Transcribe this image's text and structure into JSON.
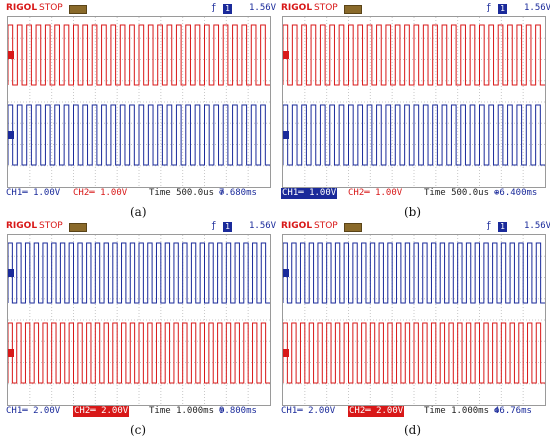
{
  "panels": [
    {
      "brand": "RIGOL",
      "status": "STOP",
      "trig_level": "1.56V",
      "ch1": "CH1═ 1.00V",
      "ch2": "CH2═ 1.00V",
      "ch1_badge": false,
      "ch2_badge": false,
      "timebase": "Time 500.0us",
      "trig_pos": "7.680ms",
      "caption": "(a)",
      "order": [
        "red",
        "blue"
      ]
    },
    {
      "brand": "RIGOL",
      "status": "STOP",
      "trig_level": "1.56V",
      "ch1": "CH1═ 1.00V",
      "ch2": "CH2═ 1.00V",
      "ch1_badge": true,
      "ch2_badge": false,
      "timebase": "Time 500.0us",
      "trig_pos": "-6.400ms",
      "caption": "(b)",
      "order": [
        "red",
        "blue"
      ]
    },
    {
      "brand": "RIGOL",
      "status": "STOP",
      "trig_level": "1.56V",
      "ch1": "CH1═ 2.00V",
      "ch2": "CH2═ 2.00V",
      "ch1_badge": false,
      "ch2_badge": true,
      "timebase": "Time 1.000ms",
      "trig_pos": "9.800ms",
      "caption": "(c)",
      "order": [
        "blue",
        "red"
      ]
    },
    {
      "brand": "RIGOL",
      "status": "STOP",
      "trig_level": "1.56V",
      "ch1": "CH1═ 2.00V",
      "ch2": "CH2═ 2.00V",
      "ch1_badge": false,
      "ch2_badge": true,
      "timebase": "Time 1.000ms",
      "trig_pos": "46.76ms",
      "caption": "(d)",
      "order": [
        "blue",
        "red"
      ]
    }
  ],
  "colors": {
    "ch1": "#1a2a9a",
    "ch2": "#d81818",
    "grid": "#c8c8c8"
  },
  "icons": {
    "trigger": "trigger-edge-icon",
    "channel": "channel-badge-icon"
  }
}
